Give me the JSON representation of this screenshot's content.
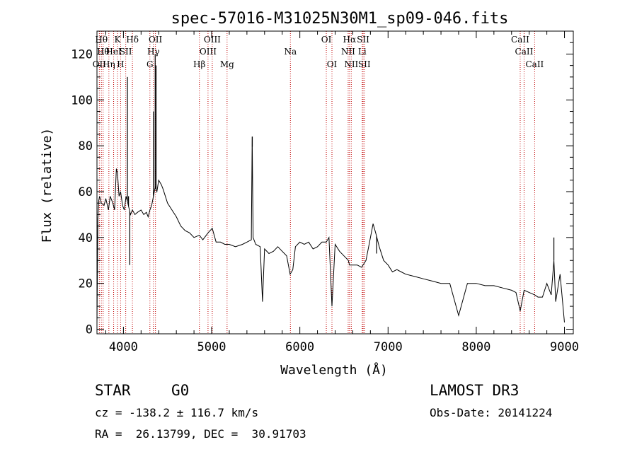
{
  "chart_data": {
    "type": "line",
    "title": "spec-57016-M31025N30M1_sp09-046.fits",
    "xlabel": "Wavelength (Å)",
    "ylabel": "Flux (relative)",
    "xlim": [
      3700,
      9100
    ],
    "ylim": [
      -2,
      130
    ],
    "xticks": [
      4000,
      5000,
      6000,
      7000,
      8000,
      9000
    ],
    "xtick_labels": [
      "4000",
      "5000",
      "6000",
      "7000",
      "8000",
      "9000"
    ],
    "yticks": [
      0,
      20,
      40,
      60,
      80,
      100,
      120
    ],
    "ytick_labels": [
      "0",
      "20",
      "40",
      "60",
      "80",
      "100",
      "120"
    ],
    "grid": false,
    "spectrum": {
      "x": [
        3700,
        3710,
        3720,
        3730,
        3750,
        3780,
        3800,
        3830,
        3850,
        3880,
        3900,
        3920,
        3933,
        3950,
        3968,
        3990,
        4010,
        4030,
        4050,
        4080,
        4102,
        4130,
        4160,
        4200,
        4230,
        4260,
        4280,
        4300,
        4320,
        4340,
        4360,
        4380,
        4400,
        4430,
        4450,
        4500,
        4550,
        4600,
        4650,
        4700,
        4750,
        4800,
        4861,
        4900,
        4959,
        5007,
        5050,
        5100,
        5150,
        5200,
        5270,
        5350,
        5400,
        5450,
        5460,
        5470,
        5500,
        5550,
        5577,
        5600,
        5650,
        5700,
        5750,
        5800,
        5850,
        5890,
        5920,
        5950,
        6000,
        6050,
        6100,
        6150,
        6200,
        6250,
        6300,
        6330,
        6364,
        6400,
        6450,
        6500,
        6550,
        6563,
        6600,
        6650,
        6700,
        6750,
        6800,
        6830,
        6860,
        6900,
        6950,
        7000,
        7050,
        7100,
        7150,
        7200,
        7300,
        7400,
        7500,
        7600,
        7700,
        7800,
        7900,
        8000,
        8100,
        8200,
        8300,
        8400,
        8450,
        8498,
        8542,
        8600,
        8662,
        8700,
        8750,
        8800,
        8850,
        8880,
        8900,
        8950,
        9000
      ],
      "y": [
        2,
        48,
        56,
        58,
        55,
        54,
        57,
        52,
        58,
        55,
        52,
        70,
        68,
        58,
        60,
        54,
        52,
        58,
        55,
        50,
        52,
        50,
        51,
        52,
        50,
        51,
        49,
        52,
        54,
        58,
        62,
        60,
        65,
        63,
        61,
        55,
        52,
        49,
        45,
        43,
        42,
        40,
        41,
        39,
        42,
        44,
        38,
        38,
        37,
        37,
        36,
        37,
        38,
        39,
        84,
        40,
        37,
        36,
        12,
        35,
        33,
        34,
        36,
        34,
        32,
        24,
        26,
        36,
        38,
        37,
        38,
        35,
        36,
        38,
        38,
        40,
        10,
        37,
        34,
        32,
        30,
        28,
        28,
        28,
        27,
        30,
        40,
        46,
        42,
        36,
        30,
        28,
        25,
        26,
        25,
        24,
        23,
        22,
        21,
        20,
        20,
        6,
        20,
        20,
        19,
        19,
        18,
        17,
        16,
        8,
        17,
        16,
        15,
        14,
        14,
        20,
        15,
        30,
        12,
        24,
        3
      ]
    },
    "spike_x": [
      4045,
      4058,
      4072,
      4340,
      4360,
      4370,
      5461,
      5577,
      6364,
      6870,
      7800,
      8497,
      8880
    ],
    "spike_y": [
      110,
      58,
      28,
      95,
      120,
      115,
      84,
      12,
      10,
      33,
      6,
      8,
      40
    ],
    "line_markers": [
      {
        "wave": 3727,
        "label": "OII",
        "row": 3
      },
      {
        "wave": 3750,
        "label": "Hθ",
        "row": 1
      },
      {
        "wave": 3770,
        "label": "Hθ",
        "row": 2
      },
      {
        "wave": 3835,
        "label": "Hη",
        "row": 3
      },
      {
        "wave": 3889,
        "label": "HeI",
        "row": 2
      },
      {
        "wave": 3933,
        "label": "K",
        "row": 1
      },
      {
        "wave": 3968,
        "label": "H",
        "row": 3
      },
      {
        "wave": 4026,
        "label": "SII",
        "row": 2
      },
      {
        "wave": 4102,
        "label": "Hδ",
        "row": 1
      },
      {
        "wave": 4300,
        "label": "G",
        "row": 3
      },
      {
        "wave": 4340,
        "label": "Hγ",
        "row": 2
      },
      {
        "wave": 4363,
        "label": "OII",
        "row": 1
      },
      {
        "wave": 4861,
        "label": "Hβ",
        "row": 3
      },
      {
        "wave": 4959,
        "label": "OIII",
        "row": 2
      },
      {
        "wave": 5007,
        "label": "OIII",
        "row": 1
      },
      {
        "wave": 5175,
        "label": "Mg",
        "row": 3
      },
      {
        "wave": 5893,
        "label": "Na",
        "row": 2
      },
      {
        "wave": 6300,
        "label": "OI",
        "row": 1
      },
      {
        "wave": 6364,
        "label": "OI",
        "row": 3
      },
      {
        "wave": 6548,
        "label": "NII",
        "row": 2
      },
      {
        "wave": 6563,
        "label": "Hα",
        "row": 1
      },
      {
        "wave": 6583,
        "label": "NII",
        "row": 3
      },
      {
        "wave": 6707,
        "label": "Li",
        "row": 2
      },
      {
        "wave": 6717,
        "label": "SII",
        "row": 1
      },
      {
        "wave": 6731,
        "label": "SII",
        "row": 3
      },
      {
        "wave": 8498,
        "label": "CaII",
        "row": 1
      },
      {
        "wave": 8542,
        "label": "CaII",
        "row": 2
      },
      {
        "wave": 8662,
        "label": "CaII",
        "row": 3
      }
    ],
    "colors": {
      "spectrum": "#000000",
      "marker_line": "#c00000",
      "axes": "#000000"
    }
  },
  "info": {
    "object_class": "STAR",
    "subclass": "G0",
    "survey": "LAMOST DR3",
    "cz_text": "cz = -138.2 ± 116.7 km/s",
    "obs_date_text": "Obs-Date: 20141224",
    "radec_text": "RA =  26.13799, DEC =  30.91703"
  }
}
